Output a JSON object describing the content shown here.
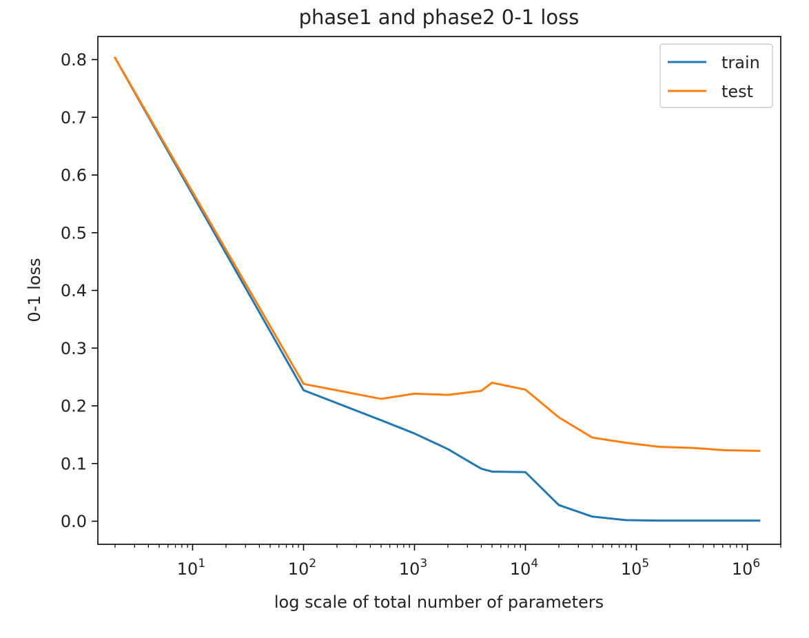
{
  "chart_data": {
    "type": "line",
    "title": "phase1 and phase2 0-1 loss",
    "xlabel": "log scale of total number of parameters",
    "ylabel": "0-1 loss",
    "x_scale": "log",
    "xlim": [
      1.4,
      2000000
    ],
    "ylim": [
      -0.04,
      0.84
    ],
    "x_ticks": [
      {
        "value": 10,
        "base": "10",
        "exp": "1"
      },
      {
        "value": 100,
        "base": "10",
        "exp": "2"
      },
      {
        "value": 1000,
        "base": "10",
        "exp": "3"
      },
      {
        "value": 10000,
        "base": "10",
        "exp": "4"
      },
      {
        "value": 100000,
        "base": "10",
        "exp": "5"
      },
      {
        "value": 1000000,
        "base": "10",
        "exp": "6"
      }
    ],
    "y_ticks": [
      {
        "value": 0.0,
        "label": "0.0"
      },
      {
        "value": 0.1,
        "label": "0.1"
      },
      {
        "value": 0.2,
        "label": "0.2"
      },
      {
        "value": 0.3,
        "label": "0.3"
      },
      {
        "value": 0.4,
        "label": "0.4"
      },
      {
        "value": 0.5,
        "label": "0.5"
      },
      {
        "value": 0.6,
        "label": "0.6"
      },
      {
        "value": 0.7,
        "label": "0.7"
      },
      {
        "value": 0.8,
        "label": "0.8"
      }
    ],
    "grid": false,
    "legend_position": "top-right",
    "series": [
      {
        "name": "train",
        "color": "#1f77b4",
        "x": [
          2,
          100,
          500,
          1000,
          2000,
          3000,
          4000,
          5000,
          10000,
          20000,
          40000,
          80000,
          160000,
          320000,
          640000,
          1280000
        ],
        "y": [
          0.803,
          0.227,
          0.175,
          0.152,
          0.125,
          0.105,
          0.091,
          0.086,
          0.085,
          0.028,
          0.008,
          0.002,
          0.001,
          0.001,
          0.001,
          0.001
        ]
      },
      {
        "name": "test",
        "color": "#ff7f0e",
        "x": [
          2,
          100,
          500,
          1000,
          2000,
          4000,
          5000,
          10000,
          20000,
          40000,
          80000,
          160000,
          320000,
          640000,
          1280000
        ],
        "y": [
          0.803,
          0.238,
          0.212,
          0.221,
          0.219,
          0.226,
          0.24,
          0.228,
          0.18,
          0.145,
          0.136,
          0.129,
          0.127,
          0.123,
          0.122
        ]
      }
    ]
  }
}
